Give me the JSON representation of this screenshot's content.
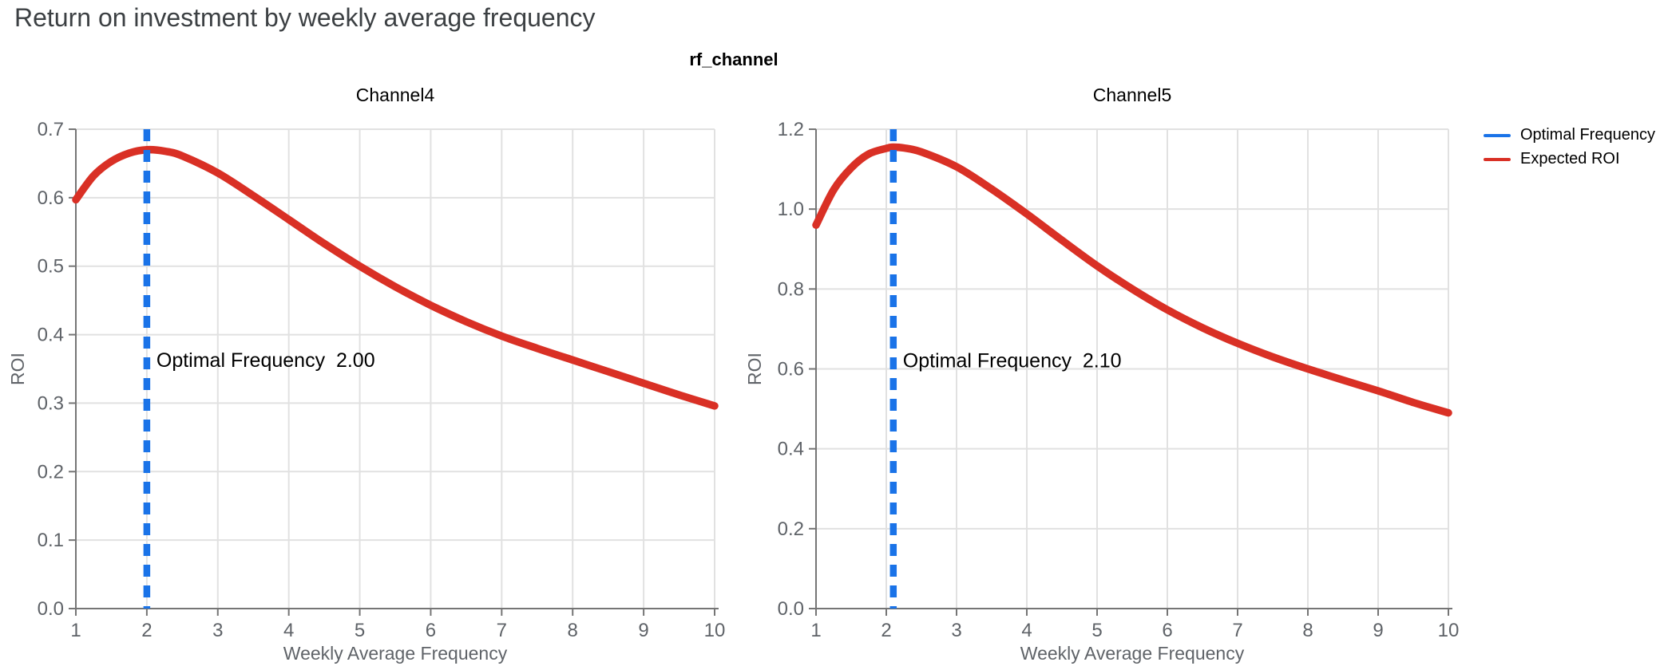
{
  "page": {
    "title": "Return on investment by weekly average frequency"
  },
  "figure": {
    "suptitle": "rf_channel"
  },
  "legend": {
    "items": [
      {
        "label": "Optimal Frequency",
        "color": "#1a73e8"
      },
      {
        "label": "Expected ROI",
        "color": "#d93025"
      }
    ]
  },
  "colors": {
    "roi_line": "#d93025",
    "optimal_line": "#1a73e8",
    "grid": "#e1e1e1",
    "axis": "#757575",
    "tick_label": "#5f6368",
    "page_title": "#3c4043",
    "annotation": "#000000",
    "subplot_title": "#000000"
  },
  "chart_data": [
    {
      "type": "line",
      "title": "Channel4",
      "xlabel": "Weekly Average Frequency",
      "ylabel": "ROI",
      "xlim": [
        1,
        10
      ],
      "ylim": [
        0,
        0.7
      ],
      "grid": true,
      "xticks": [
        1,
        2,
        3,
        4,
        5,
        6,
        7,
        8,
        9,
        10
      ],
      "yticks": [
        0,
        0.1,
        0.2,
        0.3,
        0.4,
        0.5,
        0.6,
        0.7
      ],
      "ytick_labels": [
        "0.0",
        "0.1",
        "0.2",
        "0.3",
        "0.4",
        "0.5",
        "0.6",
        "0.7"
      ],
      "optimal_frequency": 2.0,
      "annotation": "Optimal Frequency  2.00",
      "annotation_roi_level": 0.362,
      "series": [
        {
          "name": "Expected ROI",
          "x": [
            1,
            1.25,
            1.5,
            1.75,
            2,
            2.25,
            2.5,
            3,
            3.5,
            4,
            4.5,
            5,
            5.5,
            6,
            6.5,
            7,
            7.5,
            8,
            8.5,
            9,
            9.5,
            10
          ],
          "y": [
            0.597,
            0.632,
            0.653,
            0.665,
            0.67,
            0.668,
            0.661,
            0.636,
            0.603,
            0.568,
            0.533,
            0.5,
            0.47,
            0.443,
            0.419,
            0.398,
            0.38,
            0.363,
            0.346,
            0.329,
            0.312,
            0.296
          ]
        }
      ]
    },
    {
      "type": "line",
      "title": "Channel5",
      "xlabel": "Weekly Average Frequency",
      "ylabel": "ROI",
      "xlim": [
        1,
        10
      ],
      "ylim": [
        0,
        1.2
      ],
      "grid": true,
      "xticks": [
        1,
        2,
        3,
        4,
        5,
        6,
        7,
        8,
        9,
        10
      ],
      "yticks": [
        0,
        0.2,
        0.4,
        0.6,
        0.8,
        1.0,
        1.2
      ],
      "ytick_labels": [
        "0.0",
        "0.2",
        "0.4",
        "0.6",
        "0.8",
        "1.0",
        "1.2"
      ],
      "optimal_frequency": 2.1,
      "annotation": "Optimal Frequency  2.10",
      "annotation_roi_level": 0.62,
      "series": [
        {
          "name": "Expected ROI",
          "x": [
            1,
            1.25,
            1.5,
            1.75,
            2,
            2.1,
            2.25,
            2.5,
            3,
            3.5,
            4,
            4.5,
            5,
            5.5,
            6,
            6.5,
            7,
            7.5,
            8,
            8.5,
            9,
            9.5,
            10
          ],
          "y": [
            0.96,
            1.048,
            1.103,
            1.138,
            1.152,
            1.155,
            1.153,
            1.143,
            1.106,
            1.05,
            0.988,
            0.922,
            0.858,
            0.8,
            0.748,
            0.703,
            0.664,
            0.63,
            0.6,
            0.572,
            0.545,
            0.516,
            0.49
          ]
        }
      ]
    }
  ]
}
